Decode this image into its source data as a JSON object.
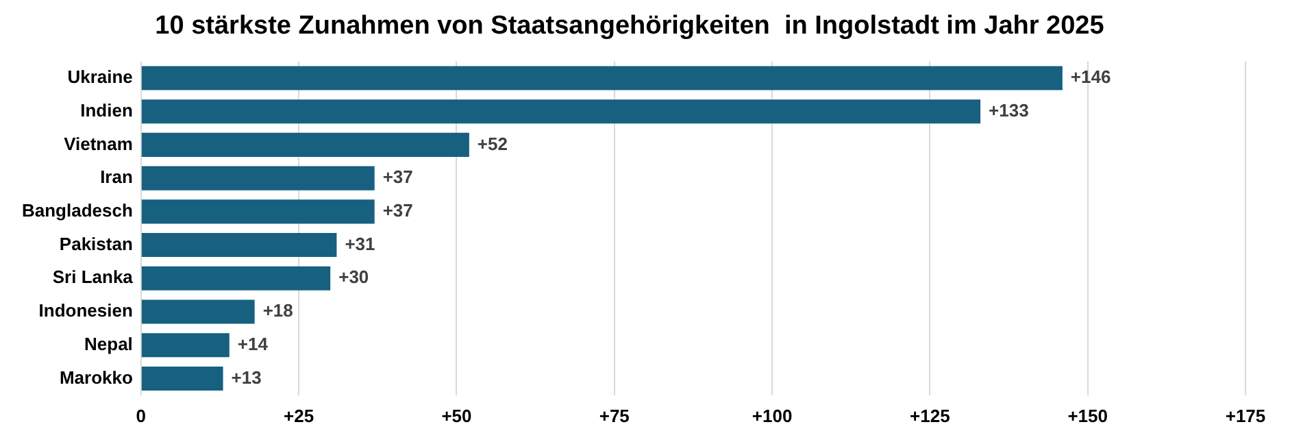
{
  "chart_data": {
    "type": "bar",
    "orientation": "horizontal",
    "title": "10 stärkste Zunahmen von Staatsangehörigkeiten  in Ingolstadt im Jahr 2025",
    "categories": [
      "Ukraine",
      "Indien",
      "Vietnam",
      "Iran",
      "Bangladesch",
      "Pakistan",
      "Sri Lanka",
      "Indonesien",
      "Nepal",
      "Marokko"
    ],
    "values": [
      146,
      133,
      52,
      37,
      37,
      31,
      30,
      18,
      14,
      13
    ],
    "value_labels": [
      "+146",
      "+133",
      "+52",
      "+37",
      "+37",
      "+31",
      "+30",
      "+18",
      "+14",
      "+13"
    ],
    "color": "#17607f",
    "xlim": [
      0,
      175
    ],
    "xticks": [
      0,
      {
        "value": 25,
        "label": "+25"
      },
      {
        "value": 50,
        "label": "+50"
      },
      {
        "value": 75,
        "label": "+75"
      },
      {
        "value": 100,
        "label": "+100"
      },
      {
        "value": 125,
        "label": "+125"
      },
      {
        "value": 150,
        "label": "+150"
      },
      {
        "value": 175,
        "label": "+175"
      }
    ],
    "grid": "x",
    "legend": false
  }
}
